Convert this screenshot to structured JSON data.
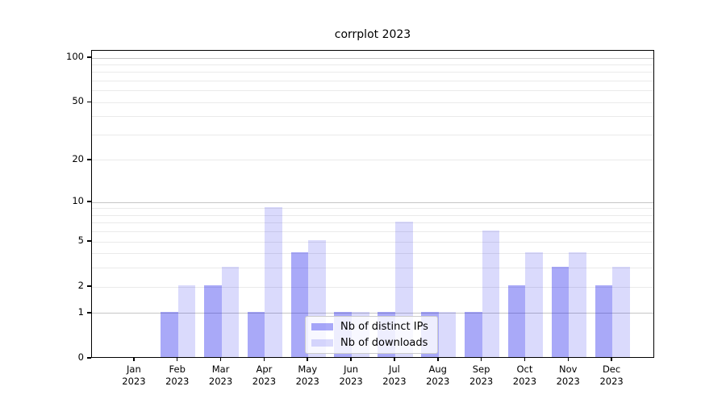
{
  "chart_data": {
    "type": "bar",
    "title": "corrplot 2023",
    "x_categories": [
      "Jan",
      "Feb",
      "Mar",
      "Apr",
      "May",
      "Jun",
      "Jul",
      "Aug",
      "Sep",
      "Oct",
      "Nov",
      "Dec"
    ],
    "x_year": "2023",
    "series": [
      {
        "name": "Nb of distinct IPs",
        "color": "rgba(10,10,235,0.35)",
        "values": [
          0,
          1,
          2,
          1,
          4,
          1,
          1,
          1,
          1,
          2,
          3,
          2
        ]
      },
      {
        "name": "Nb of downloads",
        "color": "rgba(10,10,235,0.15)",
        "values": [
          0,
          2,
          3,
          9,
          5,
          1,
          7,
          1,
          6,
          4,
          4,
          3
        ]
      }
    ],
    "y_scale": "log1p",
    "y_ticks": [
      0,
      1,
      2,
      5,
      10,
      20,
      50,
      100
    ],
    "major_gridlines": [
      1,
      10,
      100
    ],
    "minor_gridlines": [
      2,
      3,
      4,
      5,
      6,
      7,
      8,
      9,
      20,
      30,
      40,
      50,
      60,
      70,
      80,
      90
    ],
    "ylim": [
      0,
      112
    ],
    "grid": true,
    "legend_position": "lower center",
    "colors": {
      "major_grid": "#c6c6c6",
      "minor_grid": "#eaeaea",
      "axis": "#000000",
      "legend_border": "#cccccc",
      "legend_bg": "rgba(255,255,255,0.8)"
    }
  }
}
